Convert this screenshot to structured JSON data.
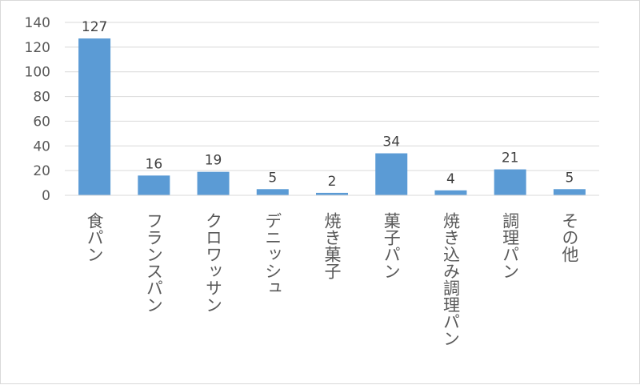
{
  "chart_data": {
    "type": "bar",
    "categories": [
      "食パン",
      "フランスパン",
      "クロワッサン",
      "デニッシュ",
      "焼き菓子",
      "菓子パン",
      "焼き込み調理パン",
      "調理パン",
      "その他"
    ],
    "values": [
      127,
      16,
      19,
      5,
      2,
      34,
      4,
      21,
      5
    ],
    "title": "",
    "xlabel": "",
    "ylabel": "",
    "ylim": [
      0,
      140
    ],
    "yticks": [
      0,
      20,
      40,
      60,
      80,
      100,
      120,
      140
    ],
    "grid": true,
    "legend": "none",
    "data_labels": true,
    "colors": {
      "bar": "#5b9bd5",
      "grid": "#d9d9d9",
      "text": "#595959"
    }
  }
}
